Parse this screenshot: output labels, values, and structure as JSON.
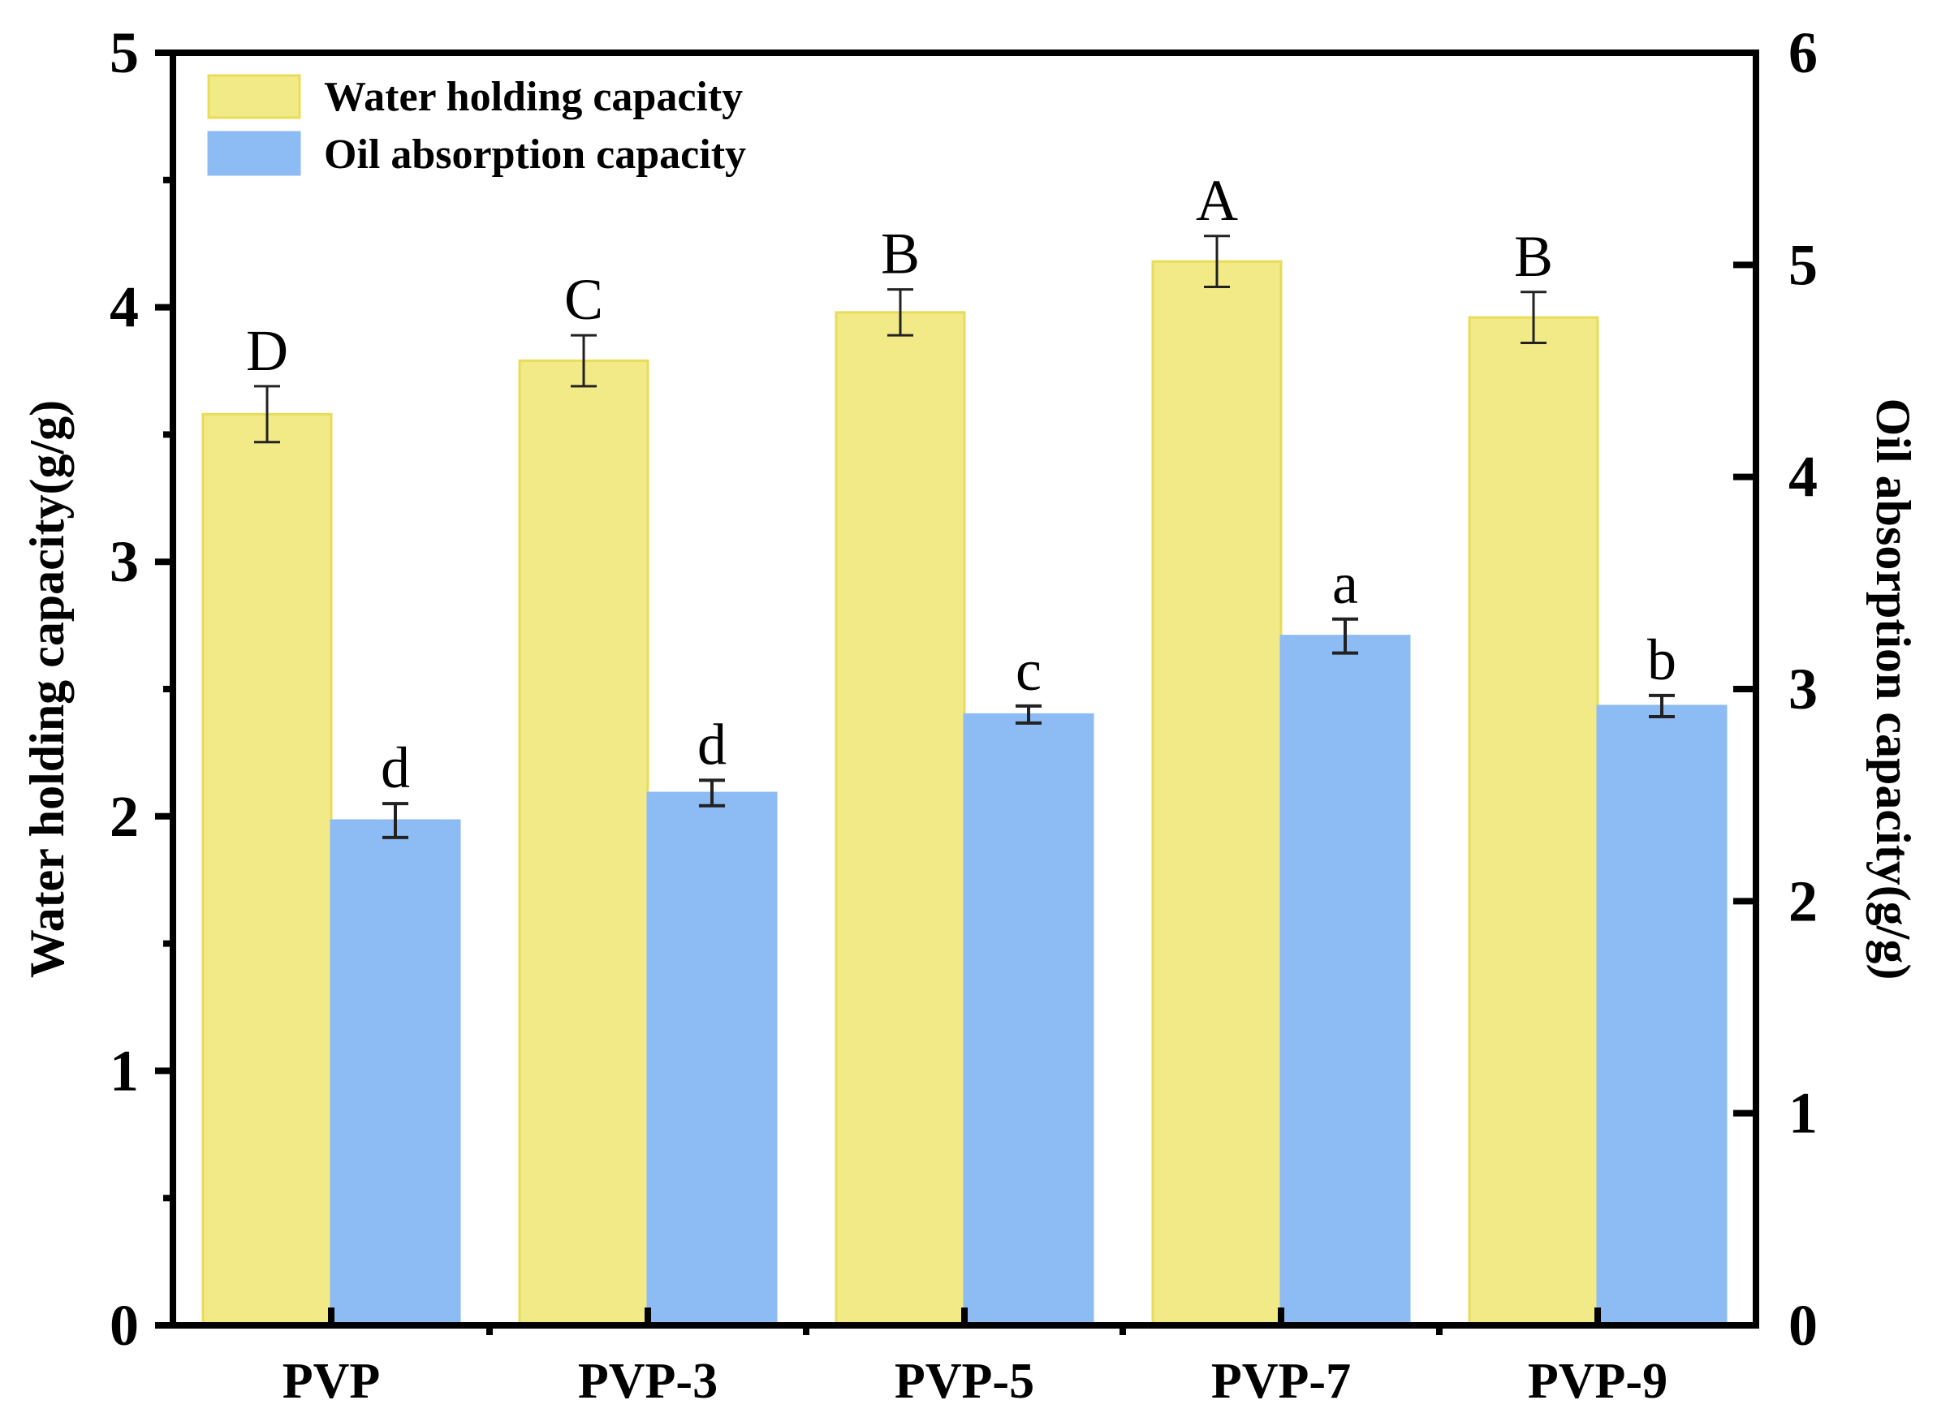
{
  "chart_data": {
    "type": "bar",
    "categories": [
      "PVP",
      "PVP-3",
      "PVP-5",
      "PVP-7",
      "PVP-9"
    ],
    "series": [
      {
        "name": "Water holding capacity",
        "axis": "left",
        "color": "#F1EA87",
        "edge_color": "#E8DC5A",
        "values": [
          3.58,
          3.79,
          3.98,
          4.18,
          3.96
        ],
        "errors": [
          0.11,
          0.1,
          0.09,
          0.1,
          0.1
        ],
        "significance": [
          "D",
          "C",
          "B",
          "A",
          "B"
        ]
      },
      {
        "name": "Oil absorption capacity",
        "axis": "right",
        "color": "#8DBBF3",
        "edge_color": "#8DBBF3",
        "values": [
          2.38,
          2.51,
          2.88,
          3.25,
          2.92
        ],
        "errors": [
          0.08,
          0.06,
          0.04,
          0.08,
          0.05
        ],
        "significance": [
          "d",
          "d",
          "c",
          "a",
          "b"
        ]
      }
    ],
    "left_axis": {
      "label": "Water holding capacity(g/g)",
      "lim": [
        0,
        5
      ],
      "ticks": [
        "0",
        "1",
        "2",
        "3",
        "4",
        "5"
      ]
    },
    "right_axis": {
      "label": "Oil absorption capacity(g/g)",
      "lim": [
        0,
        6
      ],
      "ticks": [
        "0",
        "1",
        "2",
        "3",
        "4",
        "5",
        "6"
      ]
    },
    "legend": "top-left",
    "grid": false
  }
}
